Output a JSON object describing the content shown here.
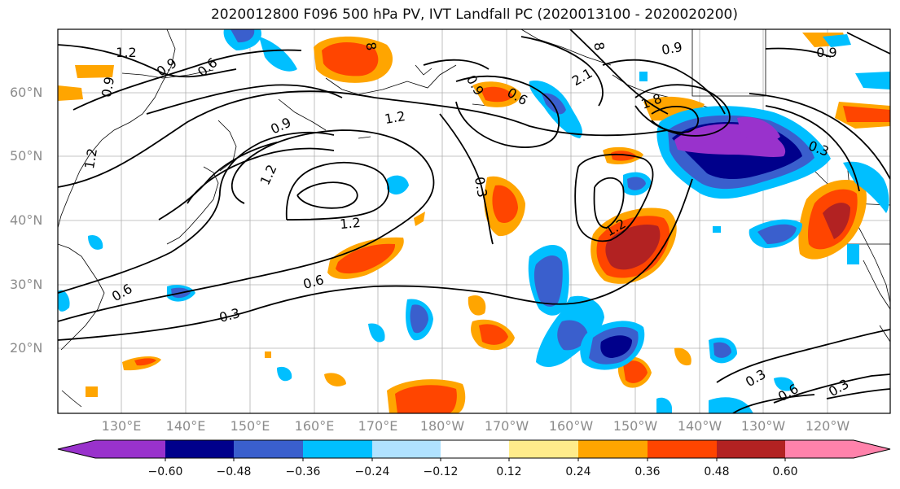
{
  "title": "2020012800 F096 500 hPa PV, IVT Landfall PC (2020013100 - 2020020200)",
  "colors": {
    "frame": "#000000",
    "grid": "#b0b0b0",
    "contour": "#000000",
    "axis_labels": "#8c8c8c"
  },
  "map": {
    "lat_labels": [
      "60°N",
      "50°N",
      "40°N",
      "30°N",
      "20°N"
    ],
    "lon_labels": [
      "130°E",
      "140°E",
      "150°E",
      "160°E",
      "170°E",
      "180°W",
      "170°W",
      "160°W",
      "150°W",
      "140°W",
      "130°W",
      "120°W"
    ],
    "contour_labels": [
      {
        "text": "1.2"
      },
      {
        "text": "0.9"
      },
      {
        "text": "0.6"
      },
      {
        "text": "0.9"
      },
      {
        "text": "1.2"
      },
      {
        "text": "0.9"
      },
      {
        "text": "1.2"
      },
      {
        "text": "1.2"
      },
      {
        "text": "1.2"
      },
      {
        "text": "0.6"
      },
      {
        "text": "0.6"
      },
      {
        "text": "0.3"
      },
      {
        "text": "0.3"
      },
      {
        "text": "0.9"
      },
      {
        "text": "0.6"
      },
      {
        "text": "2.1"
      },
      {
        "text": "1.8"
      },
      {
        "text": "0.9"
      },
      {
        "text": "0.9"
      },
      {
        "text": "0.3"
      },
      {
        "text": "1.2"
      },
      {
        "text": "0.3"
      },
      {
        "text": "0.6"
      },
      {
        "text": "0.3"
      },
      {
        "text": "8"
      },
      {
        "text": "8"
      }
    ]
  },
  "colorbar": {
    "colors": [
      "#9932cc",
      "#00008b",
      "#3a5fcd",
      "#00bfff",
      "#b0e2ff",
      "#ffffff",
      "#ffec8b",
      "#ffa500",
      "#ff4500",
      "#b22222",
      "#ff82ab"
    ],
    "tick_labels": [
      "−0.60",
      "−0.48",
      "−0.36",
      "−0.24",
      "−0.12",
      "0.12",
      "0.24",
      "0.36",
      "0.48",
      "0.60"
    ]
  }
}
